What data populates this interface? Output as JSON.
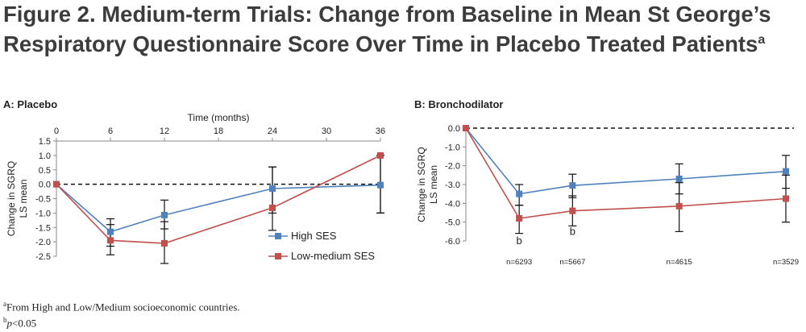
{
  "figure": {
    "title_main": "Figure 2. Medium-term Trials: Change from Baseline in Mean St George’s Respiratory Questionnaire Score Over Time in Placebo Treated Patients",
    "title_sup": "a"
  },
  "footnotes": {
    "a_mark": "a",
    "a_text": "From High and Low/Medium socioeconomic countries.",
    "b_mark": "b",
    "b_italic": "p",
    "b_text": "<0.05"
  },
  "chart_data": [
    {
      "panel_title": "A: Placebo",
      "type": "line",
      "xlabel": "Time (months)",
      "ylabel_lines": [
        "Change in SGRQ",
        "LS mean"
      ],
      "x_ticks": [
        "0",
        "6",
        "12",
        "18",
        "24",
        "30",
        "36"
      ],
      "x_tick_values": [
        0,
        6,
        12,
        18,
        24,
        30,
        36
      ],
      "y_ticks": [
        "1.5",
        "1.0",
        "0.5",
        "0.0",
        "-0.5",
        "-1.0",
        "-1.5",
        "-2.0",
        "-2.5"
      ],
      "y_tick_values": [
        1.5,
        1.0,
        0.5,
        0.0,
        -0.5,
        -1.0,
        -1.5,
        -2.0,
        -2.5
      ],
      "xlim": [
        0,
        36
      ],
      "ylim": [
        -2.5,
        1.5
      ],
      "x_axis_position": "top",
      "reference_line": 0,
      "legend_position": "bottom-right",
      "series": [
        {
          "name": "High SES",
          "color": "#4f81bd",
          "x": [
            0,
            6,
            12,
            24,
            36
          ],
          "y": [
            0.0,
            -1.65,
            -1.07,
            -0.15,
            -0.03
          ],
          "err_low": [
            0.0,
            -2.15,
            -1.55,
            -1.0,
            -1.0
          ],
          "err_high": [
            0.0,
            -1.2,
            -0.55,
            0.6,
            1.0
          ]
        },
        {
          "name": "Low-medium SES",
          "color": "#c0504d",
          "x": [
            0,
            6,
            12,
            24,
            36
          ],
          "y": [
            0.0,
            -1.95,
            -2.05,
            -0.82,
            1.0
          ],
          "err_low": [
            0.0,
            -2.45,
            -2.75,
            -1.6,
            -1.0
          ],
          "err_high": [
            0.0,
            -1.4,
            -1.3,
            0.6,
            1.0
          ]
        }
      ]
    },
    {
      "panel_title": "B: Bronchodilator",
      "type": "line",
      "ylabel_lines": [
        "Change in SGRQ",
        "LS mean"
      ],
      "y_ticks": [
        "0.0",
        "-1.0",
        "-2.0",
        "-3.0",
        "-4.0",
        "-5.0",
        "-6.0"
      ],
      "y_tick_values": [
        0.0,
        -1.0,
        -2.0,
        -3.0,
        -4.0,
        -5.0,
        -6.0
      ],
      "xlim": [
        0,
        36
      ],
      "ylim": [
        -6.0,
        0.0
      ],
      "reference_line": 0,
      "n_labels": [
        "n=6293",
        "n=5667",
        "n=4615",
        "n=3529"
      ],
      "n_label_x": [
        6,
        12,
        24,
        36
      ],
      "significance": [
        {
          "x": 6,
          "label": "b",
          "y": -6.0
        },
        {
          "x": 12,
          "label": "b",
          "y": -5.5
        }
      ],
      "series": [
        {
          "name": "High SES",
          "color": "#4f81bd",
          "x": [
            0,
            6,
            12,
            24,
            36
          ],
          "y": [
            0.0,
            -3.5,
            -3.05,
            -2.7,
            -2.3
          ],
          "err_low": [
            0.0,
            -4.1,
            -3.7,
            -3.5,
            -3.2
          ],
          "err_high": [
            0.0,
            -3.0,
            -2.45,
            -1.9,
            -1.45
          ]
        },
        {
          "name": "Low-medium SES",
          "color": "#c0504d",
          "x": [
            0,
            6,
            12,
            24,
            36
          ],
          "y": [
            0.0,
            -4.8,
            -4.4,
            -4.15,
            -3.75
          ],
          "err_low": [
            0.0,
            -5.6,
            -5.2,
            -5.5,
            -5.0
          ],
          "err_high": [
            0.0,
            -4.1,
            -3.6,
            -2.9,
            -2.5
          ]
        }
      ]
    }
  ]
}
